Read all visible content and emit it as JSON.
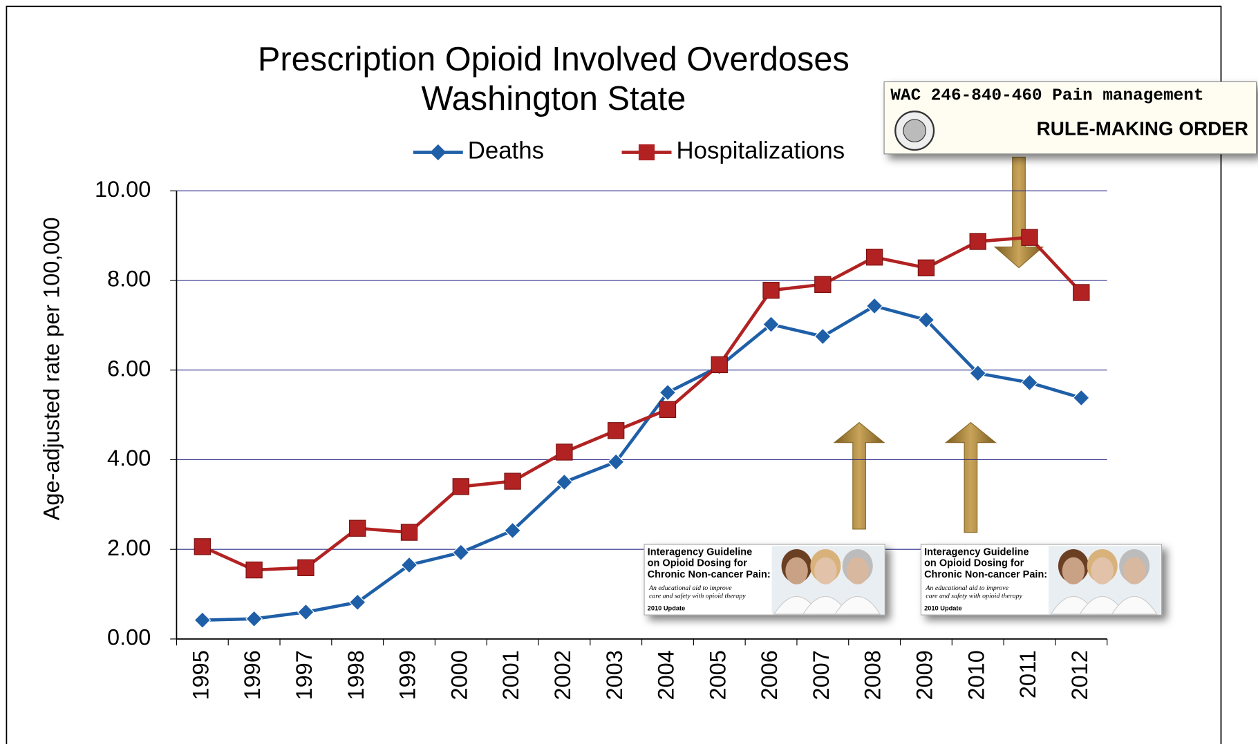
{
  "chart_data": {
    "type": "line",
    "title": "Prescription Opioid Involved Overdoses",
    "subtitle": "Washington State",
    "y_label": "Age-adjusted rate per 100,000",
    "categories": [
      "1995",
      "1996",
      "1997",
      "1998",
      "1999",
      "2000",
      "2001",
      "2002",
      "2003",
      "2004",
      "2005",
      "2006",
      "2007",
      "2008",
      "2009",
      "2010",
      "2011",
      "2012"
    ],
    "series": [
      {
        "name": "Deaths",
        "color": "#1f5fa8",
        "marker": "diamond",
        "values": [
          0.42,
          0.45,
          0.6,
          0.82,
          1.65,
          1.93,
          2.42,
          3.5,
          3.95,
          5.5,
          6.08,
          7.02,
          6.75,
          7.43,
          7.12,
          5.93,
          5.72,
          5.38
        ]
      },
      {
        "name": "Hospitalizations",
        "color": "#b22222",
        "marker": "square",
        "values": [
          2.06,
          1.54,
          1.59,
          2.47,
          2.38,
          3.4,
          3.52,
          4.17,
          4.65,
          5.12,
          6.12,
          7.78,
          7.91,
          8.52,
          8.28,
          8.87,
          8.96,
          7.73
        ]
      }
    ],
    "ylim": [
      0,
      10
    ],
    "yticks": [
      {
        "value": 0,
        "label": "0.00"
      },
      {
        "value": 2,
        "label": "2.00"
      },
      {
        "value": 4,
        "label": "4.00"
      },
      {
        "value": 6,
        "label": "6.00"
      },
      {
        "value": 8,
        "label": "8.00"
      },
      {
        "value": 10,
        "label": "10.00"
      }
    ],
    "grid": true,
    "legend": "top",
    "rule_inset": {
      "code": "WAC 246-840-460  Pain management",
      "heading": "RULE-MAKING ORDER"
    },
    "guideline_insets": [
      {
        "lines": [
          "Interagency Guideline",
          "on Opioid Dosing for",
          "Chronic Non-cancer Pain:"
        ],
        "tagline": [
          "An educational aid to improve",
          "care and safety with opioid therapy"
        ],
        "edition": "2010 Update"
      },
      {
        "lines": [
          "Interagency Guideline",
          "on Opioid Dosing for",
          "Chronic Non-cancer Pain:"
        ],
        "tagline": [
          "An educational aid to improve",
          "care and safety with opioid therapy"
        ],
        "edition": "2010 Update"
      }
    ]
  }
}
